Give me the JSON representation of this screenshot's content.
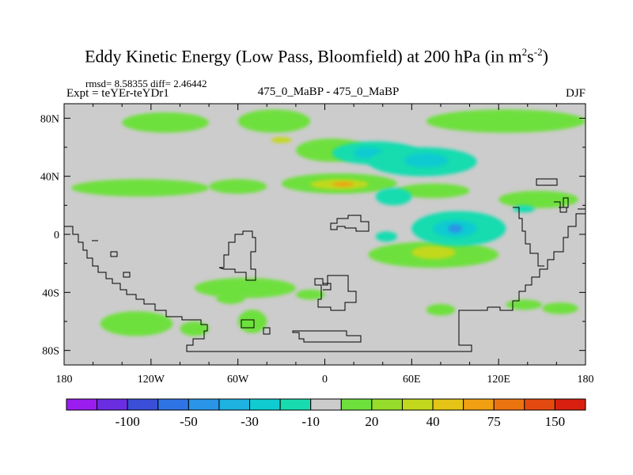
{
  "title": {
    "main": "Eddy Kinetic Energy (Low Pass, Bloomfield) at 200 hPa (in m",
    "sup1": "2",
    "mid": "s",
    "sup2": "-2",
    "close": ")"
  },
  "subtitle": {
    "rmsd": "rmsd= 8.58355 diff= 2.46442",
    "expt": "Expt = teYEr-teYDr1",
    "center": "475_0_MaBP - 475_0_MaBP",
    "season": "DJF"
  },
  "chart_data": {
    "type": "heatmap",
    "title": "Eddy Kinetic Energy (Low Pass, Bloomfield) at 200 hPa (in m2s-2)",
    "projection": "cylindrical-equidistant",
    "xlim": [
      -180,
      180
    ],
    "ylim": [
      -90,
      90
    ],
    "x_ticks": [
      {
        "value": -180,
        "label": "180"
      },
      {
        "value": -120,
        "label": "120W"
      },
      {
        "value": -60,
        "label": "60W"
      },
      {
        "value": 0,
        "label": "0"
      },
      {
        "value": 60,
        "label": "60E"
      },
      {
        "value": 120,
        "label": "120E"
      },
      {
        "value": 180,
        "label": "180"
      }
    ],
    "y_ticks": [
      {
        "value": 80,
        "label": "80N"
      },
      {
        "value": 40,
        "label": "40N"
      },
      {
        "value": 0,
        "label": "0"
      },
      {
        "value": -40,
        "label": "40S"
      },
      {
        "value": -80,
        "label": "80S"
      }
    ],
    "colorbar": {
      "colors": [
        "#9a1df0",
        "#6a2ee0",
        "#3b4ed8",
        "#2f74e4",
        "#2a95e6",
        "#1eb2e0",
        "#10cbd0",
        "#18dcb0",
        "#cccccc",
        "#6ee03c",
        "#96dc2a",
        "#c2d81c",
        "#e4c416",
        "#f0a012",
        "#ec7410",
        "#e44a10",
        "#d82010"
      ],
      "level_labels": [
        "-100",
        "-50",
        "-30",
        "-10",
        "20",
        "40",
        "75",
        "150"
      ]
    },
    "background_color": "#cccccc",
    "regions": [
      {
        "sign": "pos",
        "level": 20,
        "lon": [
          -140,
          -80
        ],
        "lat": [
          70,
          84
        ]
      },
      {
        "sign": "pos",
        "level": 20,
        "lon": [
          -60,
          -10
        ],
        "lat": [
          70,
          86
        ]
      },
      {
        "sign": "pos",
        "level": 20,
        "lon": [
          -20,
          30
        ],
        "lat": [
          50,
          66
        ]
      },
      {
        "sign": "pos",
        "level": 40,
        "lon": [
          -37,
          -23
        ],
        "lat": [
          63,
          67
        ]
      },
      {
        "sign": "pos",
        "level": 20,
        "lon": [
          70,
          180
        ],
        "lat": [
          70,
          86
        ]
      },
      {
        "sign": "pos",
        "level": 20,
        "lon": [
          -175,
          -80
        ],
        "lat": [
          26,
          38
        ]
      },
      {
        "sign": "pos",
        "level": 20,
        "lon": [
          -80,
          -40
        ],
        "lat": [
          28,
          38
        ]
      },
      {
        "sign": "pos",
        "level": 20,
        "lon": [
          -30,
          50
        ],
        "lat": [
          28,
          42
        ]
      },
      {
        "sign": "pos",
        "level": 40,
        "lon": [
          -10,
          30
        ],
        "lat": [
          31,
          38
        ]
      },
      {
        "sign": "pos",
        "level": 75,
        "lon": [
          5,
          20
        ],
        "lat": [
          33,
          36
        ]
      },
      {
        "sign": "pos",
        "level": 20,
        "lon": [
          50,
          100
        ],
        "lat": [
          25,
          35
        ]
      },
      {
        "sign": "pos",
        "level": 20,
        "lon": [
          120,
          175
        ],
        "lat": [
          18,
          30
        ]
      },
      {
        "sign": "pos",
        "level": 20,
        "lon": [
          30,
          120
        ],
        "lat": [
          -23,
          -5
        ]
      },
      {
        "sign": "pos",
        "level": 40,
        "lon": [
          60,
          90
        ],
        "lat": [
          -17,
          -8
        ]
      },
      {
        "sign": "pos",
        "level": 20,
        "lon": [
          -90,
          -20
        ],
        "lat": [
          -44,
          -30
        ]
      },
      {
        "sign": "pos",
        "level": 20,
        "lon": [
          -75,
          -55
        ],
        "lat": [
          -48,
          -40
        ]
      },
      {
        "sign": "pos",
        "level": 20,
        "lon": [
          -155,
          -105
        ],
        "lat": [
          -70,
          -53
        ]
      },
      {
        "sign": "pos",
        "level": 20,
        "lon": [
          -100,
          -80
        ],
        "lat": [
          -70,
          -60
        ]
      },
      {
        "sign": "pos",
        "level": 20,
        "lon": [
          -60,
          -40
        ],
        "lat": [
          -68,
          -52
        ]
      },
      {
        "sign": "pos",
        "level": 20,
        "lon": [
          -20,
          0
        ],
        "lat": [
          -45,
          -38
        ]
      },
      {
        "sign": "pos",
        "level": 20,
        "lon": [
          70,
          90
        ],
        "lat": [
          -56,
          -48
        ]
      },
      {
        "sign": "pos",
        "level": 20,
        "lon": [
          125,
          150
        ],
        "lat": [
          -52,
          -45
        ]
      },
      {
        "sign": "pos",
        "level": 20,
        "lon": [
          150,
          175
        ],
        "lat": [
          -55,
          -47
        ]
      },
      {
        "sign": "neg",
        "level": -10,
        "lon": [
          5,
          65
        ],
        "lat": [
          48,
          64
        ]
      },
      {
        "sign": "neg",
        "level": -30,
        "lon": [
          20,
          40
        ],
        "lat": [
          52,
          60
        ]
      },
      {
        "sign": "neg",
        "level": -10,
        "lon": [
          30,
          105
        ],
        "lat": [
          40,
          60
        ]
      },
      {
        "sign": "neg",
        "level": -30,
        "lon": [
          55,
          85
        ],
        "lat": [
          46,
          56
        ]
      },
      {
        "sign": "neg",
        "level": -10,
        "lon": [
          35,
          60
        ],
        "lat": [
          20,
          32
        ]
      },
      {
        "sign": "neg",
        "level": -10,
        "lon": [
          60,
          125
        ],
        "lat": [
          -8,
          16
        ]
      },
      {
        "sign": "neg",
        "level": -30,
        "lon": [
          75,
          105
        ],
        "lat": [
          -2,
          10
        ]
      },
      {
        "sign": "neg",
        "level": -50,
        "lon": [
          85,
          95
        ],
        "lat": [
          1,
          7
        ]
      },
      {
        "sign": "neg",
        "level": -10,
        "lon": [
          35,
          50
        ],
        "lat": [
          -5,
          2
        ]
      },
      {
        "sign": "neg",
        "level": -10,
        "lon": [
          130,
          145
        ],
        "lat": [
          15,
          20
        ]
      }
    ]
  }
}
